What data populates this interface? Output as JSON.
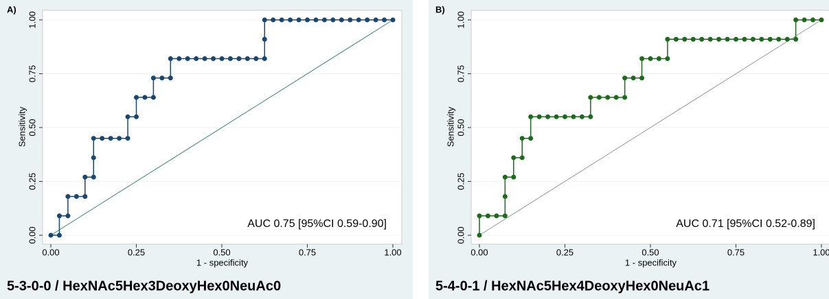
{
  "chart_data": [
    {
      "type": "line",
      "panel_label": "A)",
      "title": "5-3-0-0 / HexNAc5Hex3DeoxyHex0NeuAc0",
      "x_label": "1 - specificity",
      "y_label": "Sensitivity",
      "annotation": "AUC 0.75 [95%CI 0.59-0.90]",
      "color": "#1a476f",
      "diagonal_color": "#3a8a6a",
      "grid": true,
      "xlim": [
        0,
        1
      ],
      "ylim": [
        0,
        1
      ],
      "xticks": [
        {
          "value": 0,
          "label": "0.00"
        },
        {
          "value": 0.25,
          "label": "0.25"
        },
        {
          "value": 0.5,
          "label": "0.50"
        },
        {
          "value": 0.75,
          "label": "0.75"
        },
        {
          "value": 1,
          "label": "1.00"
        }
      ],
      "yticks": [
        {
          "value": 0,
          "label": "0.00"
        },
        {
          "value": 0.25,
          "label": "0.25"
        },
        {
          "value": 0.5,
          "label": "0.50"
        },
        {
          "value": 0.75,
          "label": "0.75"
        },
        {
          "value": 1,
          "label": "1.00"
        }
      ],
      "x": [
        0,
        0.025,
        0.025,
        0.05,
        0.05,
        0.075,
        0.1,
        0.1,
        0.125,
        0.125,
        0.125,
        0.15,
        0.175,
        0.2,
        0.225,
        0.225,
        0.25,
        0.25,
        0.275,
        0.3,
        0.3,
        0.325,
        0.35,
        0.35,
        0.375,
        0.4,
        0.425,
        0.45,
        0.475,
        0.5,
        0.525,
        0.55,
        0.575,
        0.6,
        0.625,
        0.625,
        0.625,
        0.65,
        0.675,
        0.7,
        0.725,
        0.75,
        0.775,
        0.8,
        0.825,
        0.85,
        0.875,
        0.9,
        0.925,
        0.95,
        0.975,
        1
      ],
      "values": [
        0,
        0,
        0.09,
        0.09,
        0.18,
        0.18,
        0.18,
        0.27,
        0.27,
        0.36,
        0.45,
        0.45,
        0.45,
        0.45,
        0.45,
        0.55,
        0.55,
        0.64,
        0.64,
        0.64,
        0.73,
        0.73,
        0.73,
        0.82,
        0.82,
        0.82,
        0.82,
        0.82,
        0.82,
        0.82,
        0.82,
        0.82,
        0.82,
        0.82,
        0.82,
        0.91,
        1,
        1,
        1,
        1,
        1,
        1,
        1,
        1,
        1,
        1,
        1,
        1,
        1,
        1,
        1,
        1
      ]
    },
    {
      "type": "line",
      "panel_label": "B)",
      "title": "5-4-0-1 / HexNAc5Hex4DeoxyHex0NeuAc1",
      "x_label": "1 - specificity",
      "y_label": "Sensitivity",
      "annotation": "AUC 0.71 [95%CI 0.52-0.89]",
      "color": "#1c6a1c",
      "diagonal_color": "#999999",
      "grid": true,
      "xlim": [
        0,
        1
      ],
      "ylim": [
        0,
        1
      ],
      "xticks": [
        {
          "value": 0,
          "label": "0.00"
        },
        {
          "value": 0.25,
          "label": "0.25"
        },
        {
          "value": 0.5,
          "label": "0.50"
        },
        {
          "value": 0.75,
          "label": "0.75"
        },
        {
          "value": 1,
          "label": "1.00"
        }
      ],
      "yticks": [
        {
          "value": 0,
          "label": "0.00"
        },
        {
          "value": 0.25,
          "label": "0.25"
        },
        {
          "value": 0.5,
          "label": "0.50"
        },
        {
          "value": 0.75,
          "label": "0.75"
        },
        {
          "value": 1,
          "label": "1.00"
        }
      ],
      "x": [
        0,
        0,
        0.025,
        0.05,
        0.075,
        0.075,
        0.075,
        0.1,
        0.1,
        0.125,
        0.125,
        0.15,
        0.15,
        0.175,
        0.2,
        0.225,
        0.25,
        0.275,
        0.3,
        0.325,
        0.325,
        0.35,
        0.375,
        0.4,
        0.425,
        0.425,
        0.45,
        0.475,
        0.475,
        0.5,
        0.525,
        0.55,
        0.55,
        0.575,
        0.6,
        0.625,
        0.65,
        0.675,
        0.7,
        0.725,
        0.75,
        0.775,
        0.8,
        0.825,
        0.85,
        0.875,
        0.9,
        0.925,
        0.925,
        0.95,
        0.975,
        1
      ],
      "values": [
        0,
        0.09,
        0.09,
        0.09,
        0.09,
        0.18,
        0.27,
        0.27,
        0.36,
        0.36,
        0.45,
        0.45,
        0.55,
        0.55,
        0.55,
        0.55,
        0.55,
        0.55,
        0.55,
        0.55,
        0.64,
        0.64,
        0.64,
        0.64,
        0.64,
        0.73,
        0.73,
        0.73,
        0.82,
        0.82,
        0.82,
        0.82,
        0.91,
        0.91,
        0.91,
        0.91,
        0.91,
        0.91,
        0.91,
        0.91,
        0.91,
        0.91,
        0.91,
        0.91,
        0.91,
        0.91,
        0.91,
        0.91,
        1,
        1,
        1,
        1
      ]
    }
  ]
}
